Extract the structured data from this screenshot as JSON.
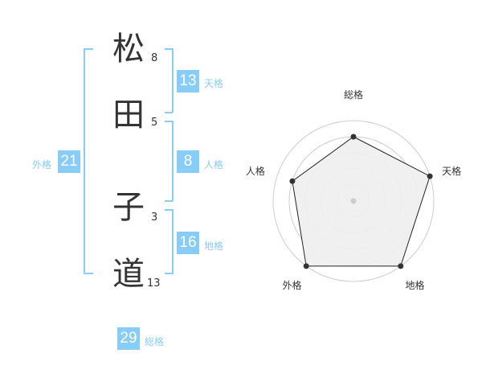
{
  "name": {
    "chars": [
      {
        "char": "松",
        "strokes": "8"
      },
      {
        "char": "田",
        "strokes": "5"
      },
      {
        "char": "子",
        "strokes": "3"
      },
      {
        "char": "道",
        "strokes": "13"
      }
    ]
  },
  "kaku": {
    "tenkaku": {
      "label": "天格",
      "value": "13"
    },
    "jinkaku": {
      "label": "人格",
      "value": "8"
    },
    "chikaku": {
      "label": "地格",
      "value": "16"
    },
    "gaikaku": {
      "label": "外格",
      "value": "21"
    },
    "soukaku": {
      "label": "総格",
      "value": "29"
    }
  },
  "accent_color": "#88ccf8",
  "chart_data": {
    "type": "radar",
    "axes": [
      "総格",
      "天格",
      "地格",
      "外格",
      "人格"
    ],
    "values": [
      4,
      5,
      5,
      5,
      4
    ],
    "range": [
      0,
      5
    ],
    "rings": 5
  }
}
